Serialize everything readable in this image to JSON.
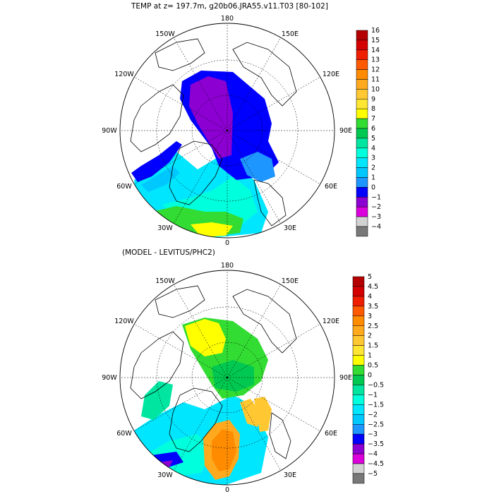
{
  "figure": {
    "top_title": "TEMP at z= 197.7m, g20b06.JRA55.v11.T03 [80-102]",
    "bottom_title": "(MODEL - LEVITUS/PHC2)"
  },
  "panels": [
    {
      "id": "top",
      "longitude_labels": {
        "top": "180",
        "tl": "150W",
        "tr": "150E",
        "ul": "120W",
        "ur": "120E",
        "l": "90W",
        "r": "90E",
        "ll": "60W",
        "lr": "60E",
        "bl": "30W",
        "br": "30E",
        "bottom": "0"
      },
      "colorbar": {
        "labels": [
          "16",
          "15",
          "14",
          "13",
          "12",
          "11",
          "10",
          "9",
          "8",
          "7",
          "6",
          "5",
          "4",
          "3",
          "2",
          "1",
          "0",
          "−1",
          "−2",
          "−3",
          "−4"
        ],
        "colors": [
          "#b40000",
          "#d40000",
          "#f01e00",
          "#ff5a00",
          "#ff8c00",
          "#ffaa1e",
          "#ffc832",
          "#ffe632",
          "#ffff00",
          "#32dc32",
          "#00c850",
          "#00e6a0",
          "#00ffdc",
          "#00e6ff",
          "#00c8ff",
          "#1e96ff",
          "#0000ff",
          "#8c00d2",
          "#dc00dc",
          "#d2d2d2",
          "#787878"
        ]
      }
    },
    {
      "id": "bottom",
      "longitude_labels": {
        "top": "180",
        "tl": "150W",
        "tr": "150E",
        "ul": "120W",
        "ur": "120E",
        "l": "90W",
        "r": "90E",
        "ll": "60W",
        "lr": "60E",
        "bl": "30W",
        "br": "30E",
        "bottom": "0"
      },
      "colorbar": {
        "labels": [
          "5",
          "4.5",
          "4",
          "3.5",
          "3",
          "2.5",
          "2",
          "1.5",
          "1",
          "0.5",
          "0",
          "−0.5",
          "−1",
          "−1.5",
          "−2",
          "−2.5",
          "−3",
          "−3.5",
          "−4",
          "−4.5",
          "−5"
        ],
        "colors": [
          "#b40000",
          "#d40000",
          "#f01e00",
          "#ff5a00",
          "#ff8c00",
          "#ffaa1e",
          "#ffc832",
          "#ffe632",
          "#ffff00",
          "#32dc32",
          "#00c850",
          "#00e6a0",
          "#00ffdc",
          "#00e6ff",
          "#00c8ff",
          "#1e96ff",
          "#0000ff",
          "#8c00d2",
          "#dc00dc",
          "#d2d2d2",
          "#787878"
        ]
      }
    }
  ]
}
